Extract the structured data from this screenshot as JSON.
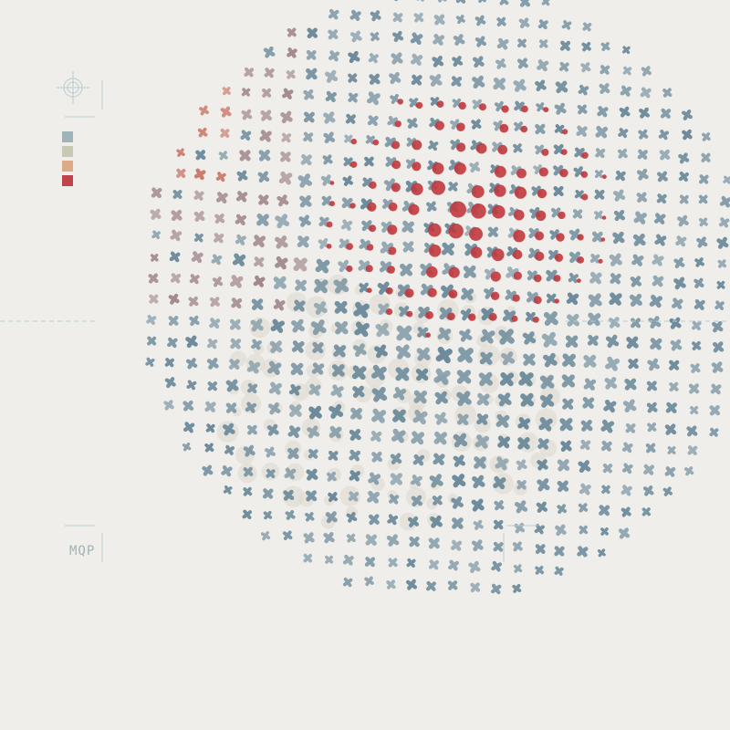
{
  "brand": {
    "text": "MQP"
  },
  "palette": {
    "background": "#f0eeea",
    "slate": "#5f8194",
    "red": "#c0393e",
    "mauve": "#9a7f86",
    "terracotta": "#c77060",
    "cream": "#dedbd3",
    "guide": "#b9cdd0"
  },
  "legend": {
    "swatches": [
      "#9fb4b8",
      "#c8c8b4",
      "#dcab85",
      "#c0434a"
    ]
  },
  "icons": {
    "crosshair": "crosshair-icon",
    "cross_glyph": "x-cross-glyph"
  }
}
